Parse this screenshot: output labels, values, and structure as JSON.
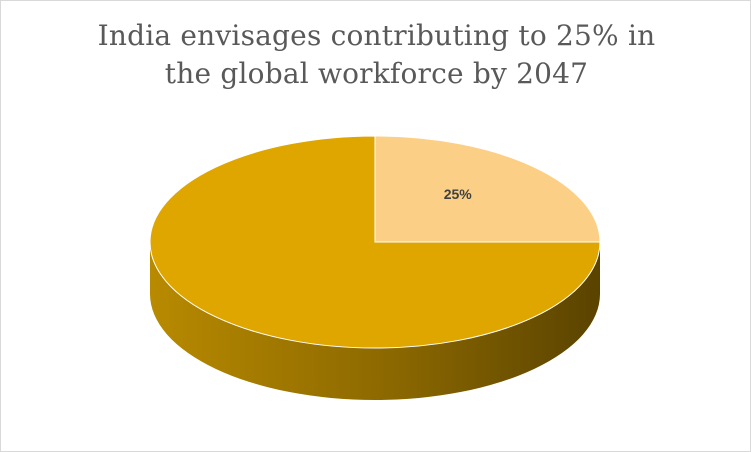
{
  "chart_data": {
    "type": "pie",
    "title_lines": [
      "India envisages contributing to 25% in",
      "the global workforce by 2047"
    ],
    "xlabel": "",
    "ylabel": "",
    "legend": "none",
    "slices": [
      {
        "value": 25,
        "label": "25%",
        "color": "#fbd086"
      },
      {
        "value": 75,
        "label": "",
        "color": "#dfa600"
      }
    ],
    "colors": {
      "side_light": "#b88a00",
      "side_dark": "#5a4300"
    }
  }
}
